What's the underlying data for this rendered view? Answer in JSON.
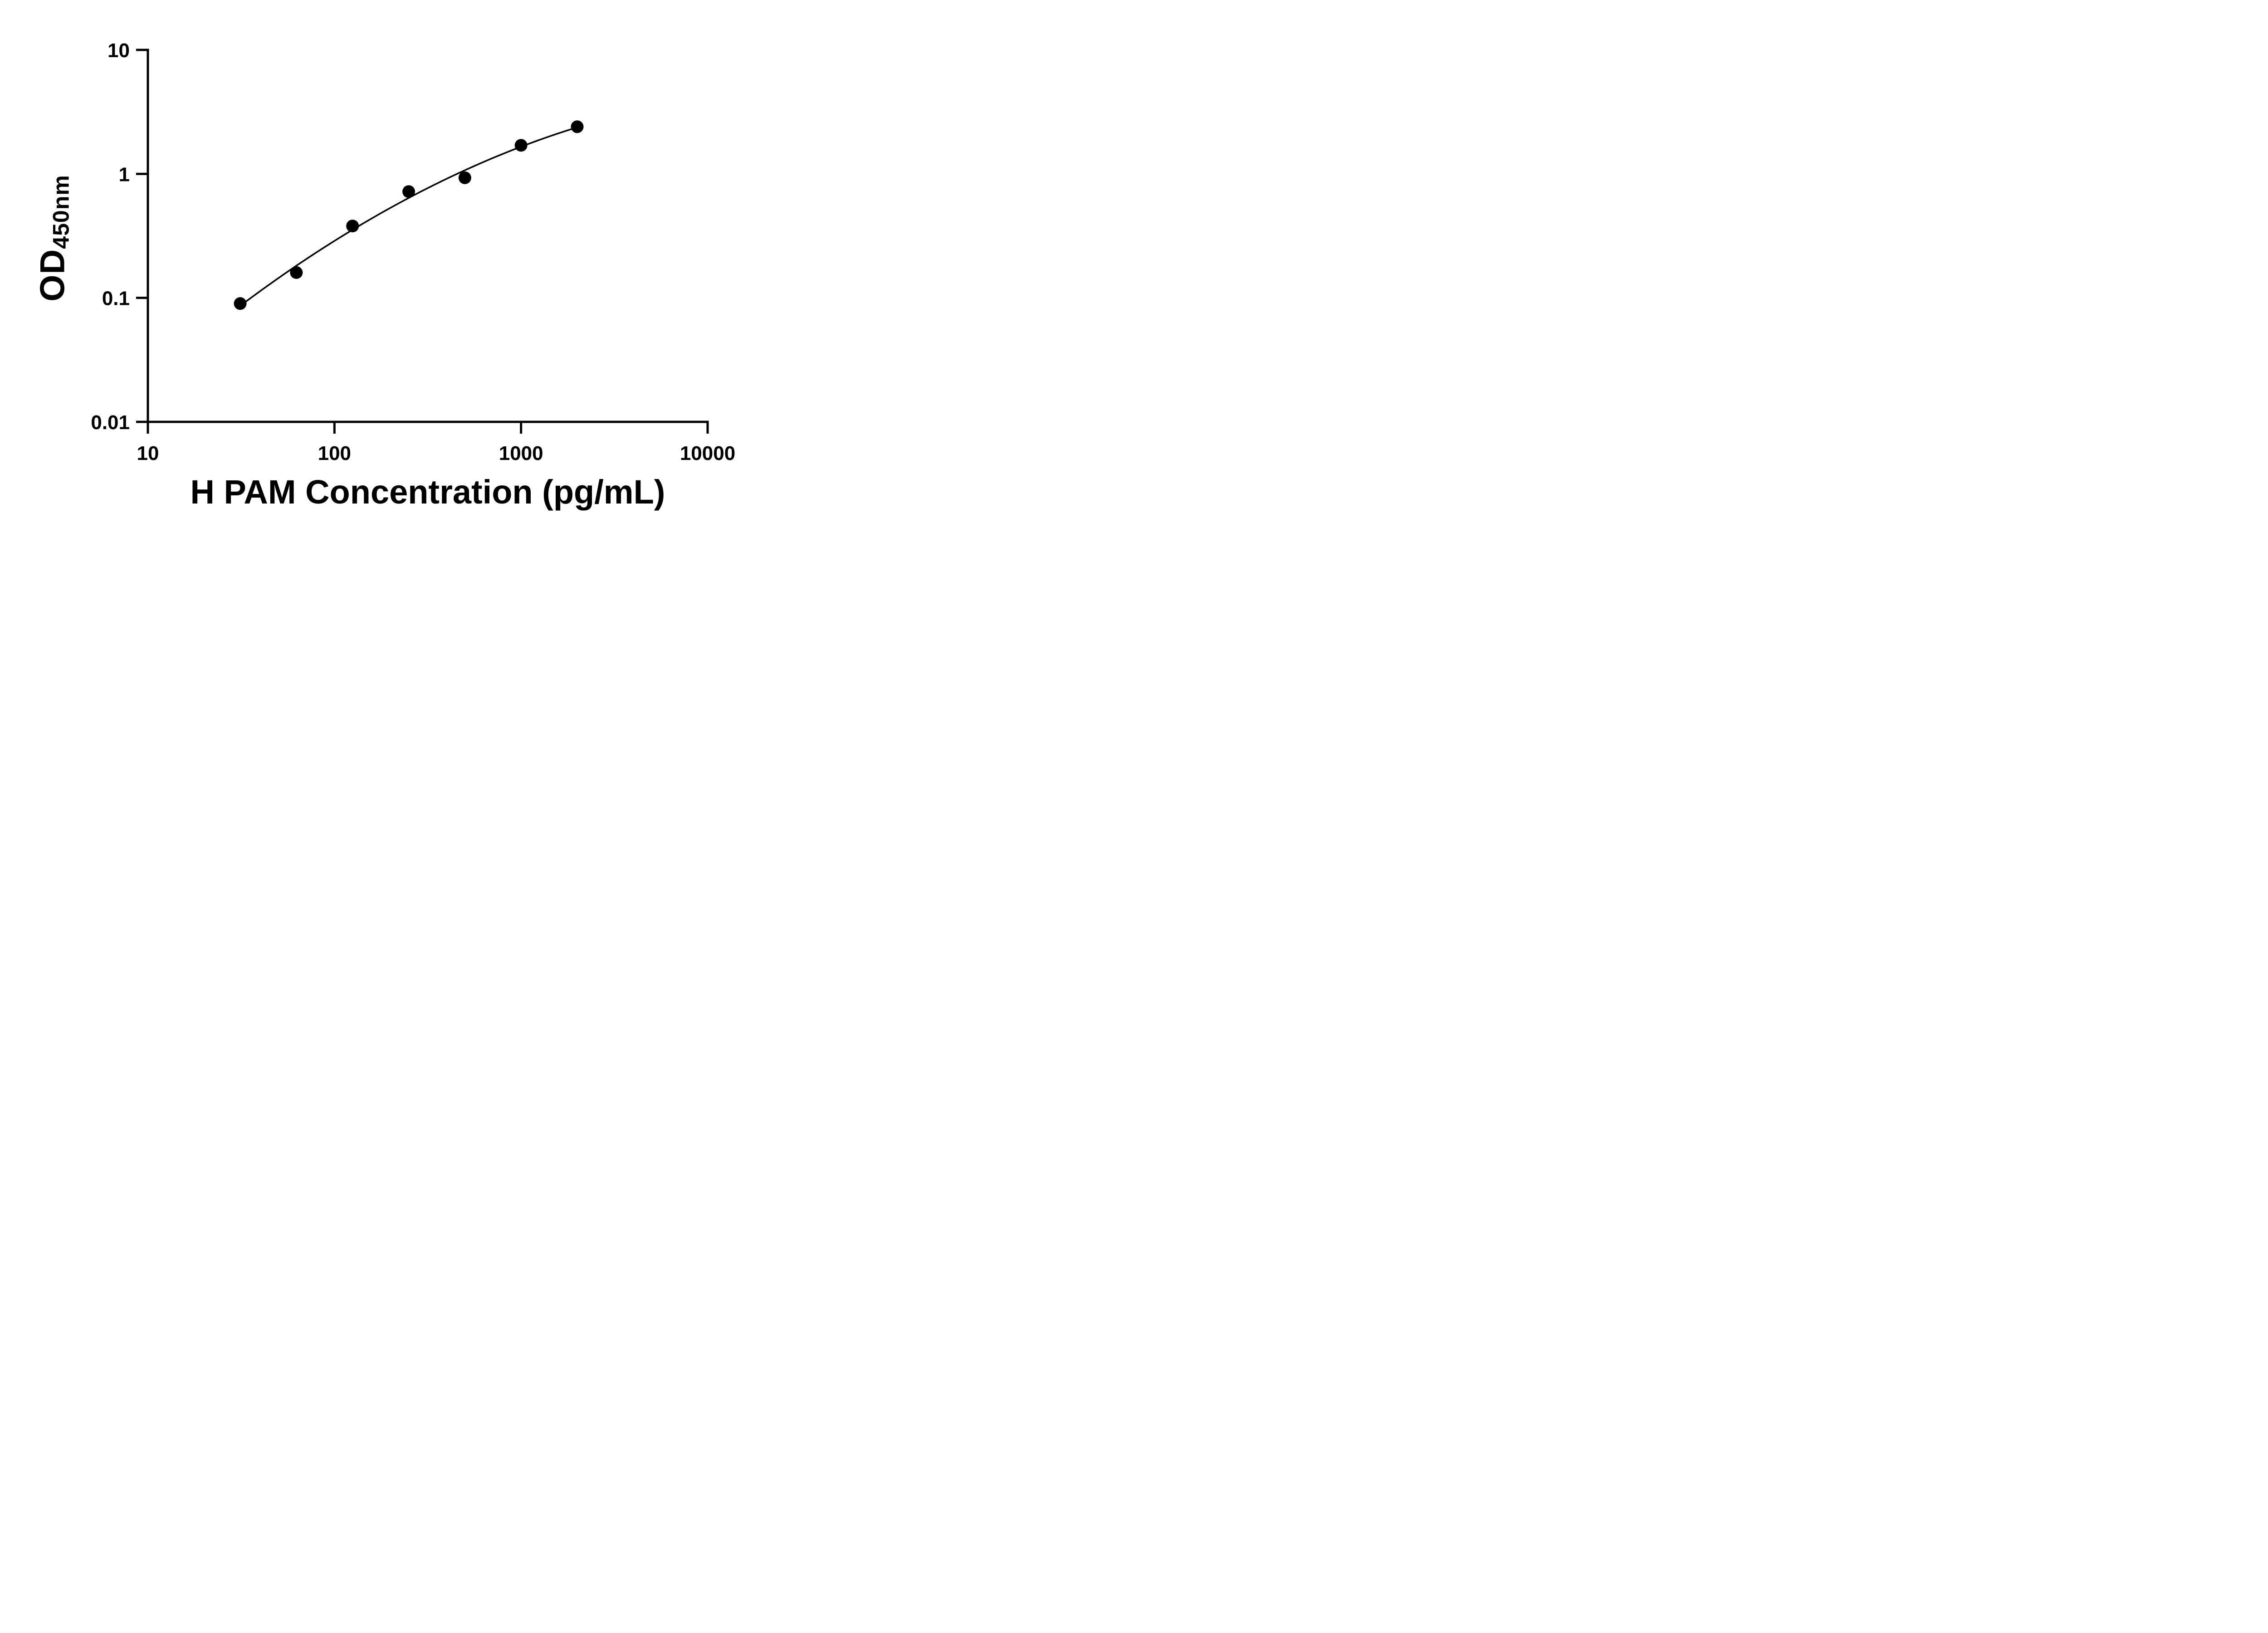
{
  "figure": {
    "background_color": "#ffffff",
    "axis_color": "#000000",
    "point_color": "#000000",
    "curve_color": "#000000",
    "text_color": "#000000"
  },
  "chart_data": {
    "type": "scatter",
    "title": "",
    "xlabel": "H PAM Concentration (pg/mL)",
    "ylabel": "OD",
    "ylabel_subscript": "450nm",
    "xscale": "log",
    "yscale": "log",
    "xlim": [
      10,
      10000
    ],
    "ylim": [
      0.01,
      10
    ],
    "grid": false,
    "legend": false,
    "x": [
      31.25,
      62.5,
      125,
      250,
      500,
      1000,
      2000
    ],
    "y": [
      0.09,
      0.16,
      0.38,
      0.72,
      0.93,
      1.7,
      2.4
    ],
    "has_fit_curve": true,
    "x_ticks": [
      {
        "value": 10,
        "label": "10"
      },
      {
        "value": 100,
        "label": "100"
      },
      {
        "value": 1000,
        "label": "1000"
      },
      {
        "value": 10000,
        "label": "10000"
      }
    ],
    "y_ticks": [
      {
        "value": 10,
        "label": "10"
      },
      {
        "value": 1,
        "label": "1"
      },
      {
        "value": 0.1,
        "label": "0.1"
      },
      {
        "value": 0.01,
        "label": "0.01"
      }
    ]
  }
}
